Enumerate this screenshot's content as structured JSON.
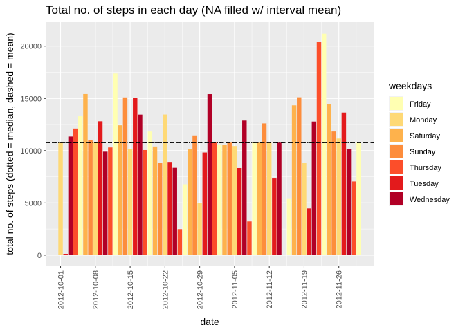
{
  "chart_data": {
    "type": "bar",
    "title": "Total no. of steps in each day (NA filled w/ interval mean)",
    "xlabel": "date",
    "ylabel": "total no. of steps (dotted = median, dashed = mean)",
    "ylim": [
      -1000,
      22300
    ],
    "yticks": [
      0,
      5000,
      10000,
      15000,
      20000
    ],
    "xticks": [
      "2012-10-01",
      "2012-10-08",
      "2012-10-15",
      "2012-10-22",
      "2012-10-29",
      "2012-11-05",
      "2012-11-12",
      "2012-11-19",
      "2012-11-26"
    ],
    "xlim": [
      "2012-09-28",
      "2012-12-03"
    ],
    "dates": [
      "2012-10-01",
      "2012-10-02",
      "2012-10-03",
      "2012-10-04",
      "2012-10-05",
      "2012-10-06",
      "2012-10-07",
      "2012-10-08",
      "2012-10-09",
      "2012-10-10",
      "2012-10-11",
      "2012-10-12",
      "2012-10-13",
      "2012-10-14",
      "2012-10-15",
      "2012-10-16",
      "2012-10-17",
      "2012-10-18",
      "2012-10-19",
      "2012-10-20",
      "2012-10-21",
      "2012-10-22",
      "2012-10-23",
      "2012-10-24",
      "2012-10-25",
      "2012-10-26",
      "2012-10-27",
      "2012-10-28",
      "2012-10-29",
      "2012-10-30",
      "2012-10-31",
      "2012-11-01",
      "2012-11-02",
      "2012-11-03",
      "2012-11-04",
      "2012-11-05",
      "2012-11-06",
      "2012-11-07",
      "2012-11-08",
      "2012-11-09",
      "2012-11-10",
      "2012-11-11",
      "2012-11-12",
      "2012-11-13",
      "2012-11-14",
      "2012-11-15",
      "2012-11-16",
      "2012-11-17",
      "2012-11-18",
      "2012-11-19",
      "2012-11-20",
      "2012-11-21",
      "2012-11-22",
      "2012-11-23",
      "2012-11-24",
      "2012-11-25",
      "2012-11-26",
      "2012-11-27",
      "2012-11-28",
      "2012-11-29",
      "2012-11-30"
    ],
    "weekdays": [
      "Monday",
      "Tuesday",
      "Wednesday",
      "Thursday",
      "Friday",
      "Saturday",
      "Sunday",
      "Monday",
      "Tuesday",
      "Wednesday",
      "Thursday",
      "Friday",
      "Saturday",
      "Sunday",
      "Monday",
      "Tuesday",
      "Wednesday",
      "Thursday",
      "Friday",
      "Saturday",
      "Sunday",
      "Monday",
      "Tuesday",
      "Wednesday",
      "Thursday",
      "Friday",
      "Saturday",
      "Sunday",
      "Monday",
      "Tuesday",
      "Wednesday",
      "Thursday",
      "Friday",
      "Saturday",
      "Sunday",
      "Monday",
      "Tuesday",
      "Wednesday",
      "Thursday",
      "Friday",
      "Saturday",
      "Sunday",
      "Monday",
      "Tuesday",
      "Wednesday",
      "Thursday",
      "Friday",
      "Saturday",
      "Sunday",
      "Monday",
      "Tuesday",
      "Wednesday",
      "Thursday",
      "Friday",
      "Saturday",
      "Sunday",
      "Monday",
      "Tuesday",
      "Wednesday",
      "Thursday",
      "Friday"
    ],
    "values": [
      10766,
      126,
      11352,
      12116,
      13294,
      15420,
      11015,
      10766,
      12811,
      9900,
      10304,
      17382,
      12426,
      15098,
      10139,
      15084,
      13452,
      10056,
      11829,
      10395,
      8821,
      13460,
      8918,
      8355,
      2492,
      6778,
      10119,
      11458,
      5018,
      9819,
      15414,
      10766,
      10600,
      10571,
      10766,
      10439,
      8334,
      12883,
      3219,
      10766,
      10766,
      12608,
      10765,
      7336,
      10766,
      41,
      5441,
      14339,
      15110,
      8841,
      4472,
      12787,
      20427,
      21194,
      14478,
      11834,
      11162,
      13646,
      10183,
      7047,
      10766
    ],
    "mean": 10766,
    "median": 10766,
    "legend": {
      "title": "weekdays",
      "placement": "right",
      "entries": [
        "Friday",
        "Monday",
        "Saturday",
        "Sunday",
        "Thursday",
        "Tuesday",
        "Wednesday"
      ],
      "colors": [
        "#FFFFB2",
        "#FED976",
        "#FEB24C",
        "#FD8D3C",
        "#FC4E2A",
        "#E31A1C",
        "#B10026"
      ]
    },
    "grid": true,
    "panel_background": "#EBEBEB"
  }
}
